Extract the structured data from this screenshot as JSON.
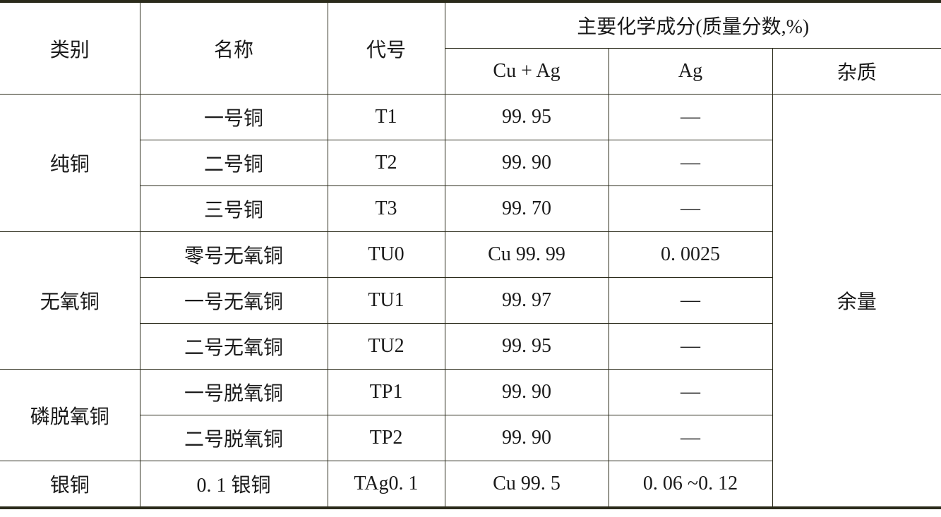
{
  "headers": {
    "category": "类别",
    "name": "名称",
    "code": "代号",
    "composition": "主要化学成分(质量分数,%)",
    "cu_ag": "Cu + Ag",
    "ag": "Ag",
    "impurity": "杂质"
  },
  "impurity_value": "余量",
  "groups": [
    {
      "category": "纯铜",
      "rows": [
        {
          "name": "一号铜",
          "code": "T1",
          "cu_ag": "99. 95",
          "ag": "—"
        },
        {
          "name": "二号铜",
          "code": "T2",
          "cu_ag": "99. 90",
          "ag": "—"
        },
        {
          "name": "三号铜",
          "code": "T3",
          "cu_ag": "99. 70",
          "ag": "—"
        }
      ]
    },
    {
      "category": "无氧铜",
      "rows": [
        {
          "name": "零号无氧铜",
          "code": "TU0",
          "cu_ag": "Cu 99. 99",
          "ag": "0. 0025"
        },
        {
          "name": "一号无氧铜",
          "code": "TU1",
          "cu_ag": "99. 97",
          "ag": "—"
        },
        {
          "name": "二号无氧铜",
          "code": "TU2",
          "cu_ag": "99. 95",
          "ag": "—"
        }
      ]
    },
    {
      "category": "磷脱氧铜",
      "rows": [
        {
          "name": "一号脱氧铜",
          "code": "TP1",
          "cu_ag": "99. 90",
          "ag": "—"
        },
        {
          "name": "二号脱氧铜",
          "code": "TP2",
          "cu_ag": "99. 90",
          "ag": "—"
        }
      ]
    },
    {
      "category": "银铜",
      "rows": [
        {
          "name": "0. 1 银铜",
          "code": "TAg0. 1",
          "cu_ag": "Cu 99. 5",
          "ag": "0. 06 ~0. 12"
        }
      ]
    }
  ]
}
